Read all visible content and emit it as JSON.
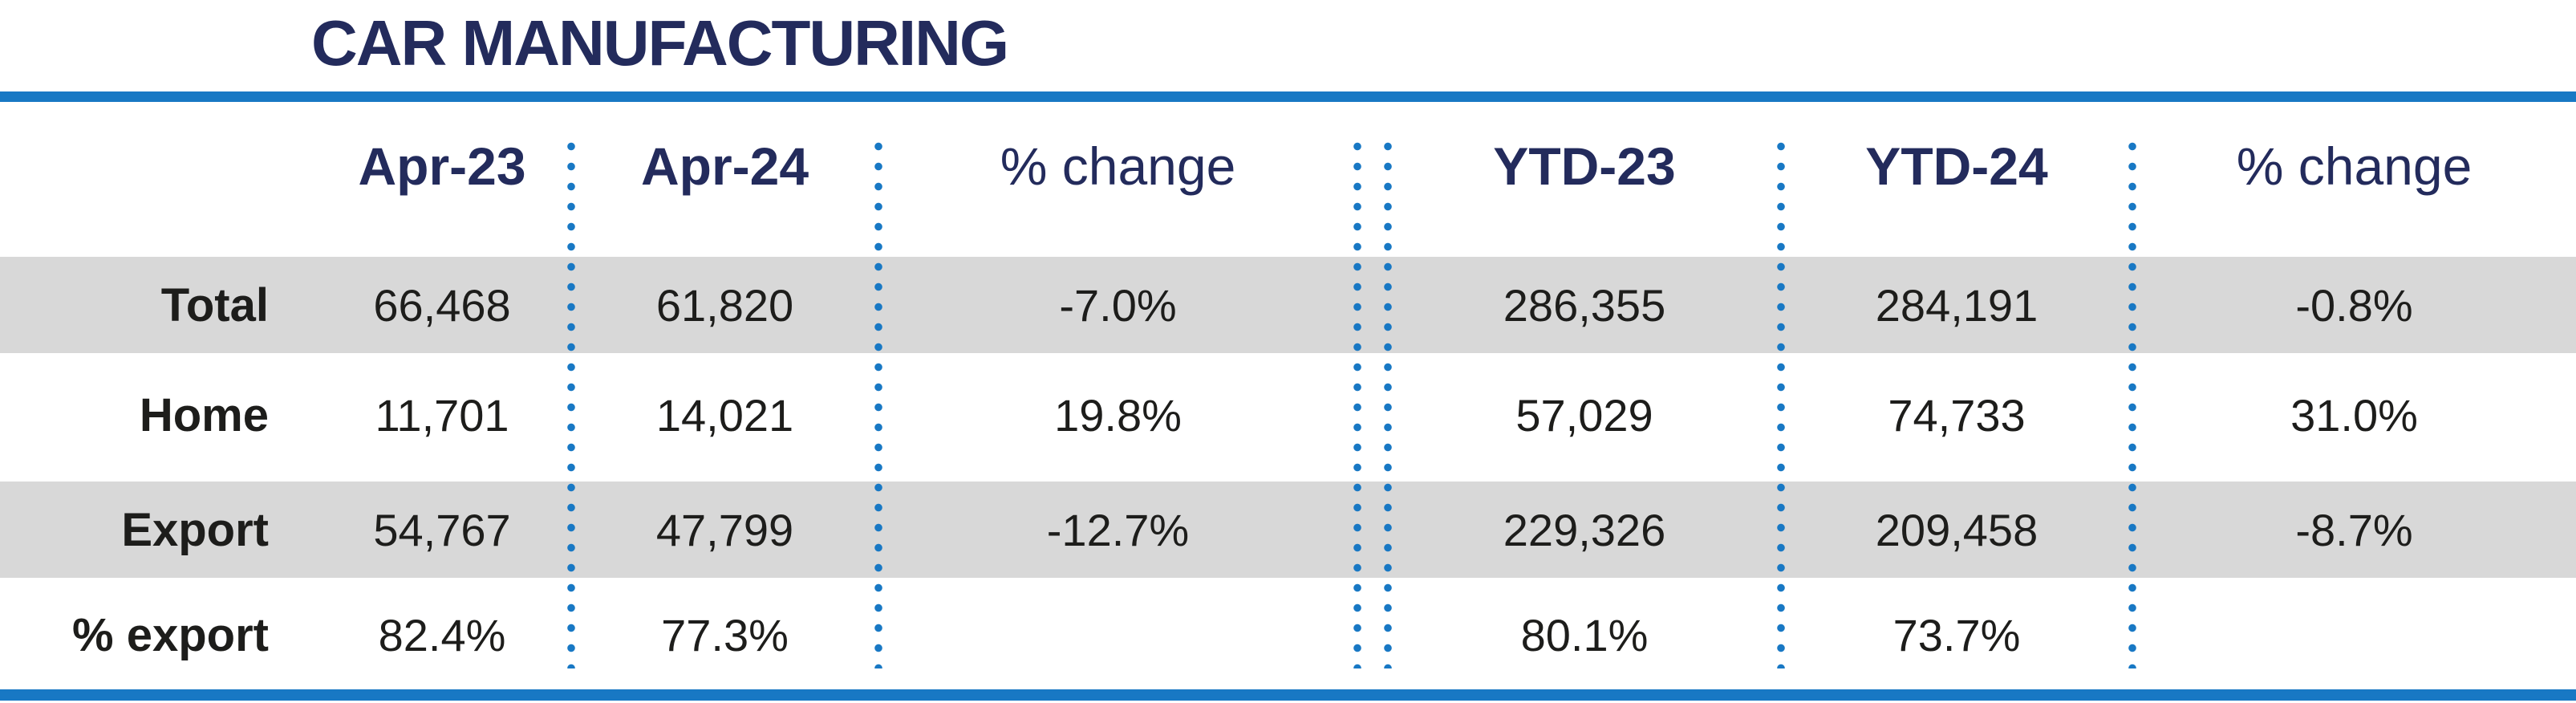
{
  "title": "CAR MANUFACTURING",
  "colors": {
    "navy_heading": "#232b5c",
    "accent_blue": "#1878c4",
    "row_gray": "#d8d8d8",
    "body_text": "#1d1d1b"
  },
  "table": {
    "columns": [
      "",
      "Apr-23",
      "Apr-24",
      "% change",
      "YTD-23",
      "YTD-24",
      "% change"
    ],
    "rows": [
      {
        "label": "Total",
        "cells": [
          "66,468",
          "61,820",
          "-7.0%",
          "286,355",
          "284,191",
          "-0.8%"
        ]
      },
      {
        "label": "Home",
        "cells": [
          "11,701",
          "14,021",
          "19.8%",
          "57,029",
          "74,733",
          "31.0%"
        ]
      },
      {
        "label": "Export",
        "cells": [
          "54,767",
          "47,799",
          "-12.7%",
          "229,326",
          "209,458",
          "-8.7%"
        ]
      },
      {
        "label": "% export",
        "cells": [
          "82.4%",
          "77.3%",
          "",
          "80.1%",
          "73.7%",
          ""
        ]
      }
    ]
  },
  "chart_data": {
    "type": "table",
    "title": "CAR MANUFACTURING",
    "columns": [
      "Apr-23",
      "Apr-24",
      "% change",
      "YTD-23",
      "YTD-24",
      "% change"
    ],
    "row_labels": [
      "Total",
      "Home",
      "Export",
      "% export"
    ],
    "rows": [
      [
        "66,468",
        "61,820",
        "-7.0%",
        "286,355",
        "284,191",
        "-0.8%"
      ],
      [
        "11,701",
        "14,021",
        "19.8%",
        "57,029",
        "74,733",
        "31.0%"
      ],
      [
        "54,767",
        "47,799",
        "-12.7%",
        "229,326",
        "209,458",
        "-8.7%"
      ],
      [
        "82.4%",
        "77.3%",
        "",
        "80.1%",
        "73.7%",
        ""
      ]
    ],
    "numeric": {
      "Apr-23": [
        66468,
        11701,
        54767,
        82.4
      ],
      "Apr-24": [
        61820,
        14021,
        47799,
        77.3
      ],
      "pct_change_month": [
        -7.0,
        19.8,
        -12.7,
        null
      ],
      "YTD-23": [
        286355,
        57029,
        229326,
        80.1
      ],
      "YTD-24": [
        284191,
        74733,
        209458,
        73.7
      ],
      "pct_change_ytd": [
        -0.8,
        31.0,
        -8.7,
        null
      ]
    },
    "layout_hints": {
      "striped_rows": true,
      "stripe_color": "#d8d8d8",
      "separator_style": "blue dotted vertical lines, double line between monthly and YTD sections",
      "top_bottom_rules": "#1878c4"
    }
  }
}
